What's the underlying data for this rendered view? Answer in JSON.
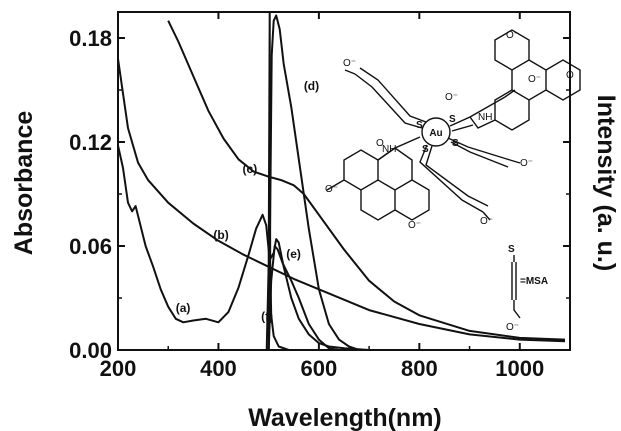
{
  "chart_data": {
    "type": "line",
    "xlabel": "Wavelength(nm)",
    "ylabel_left": "Absorbance",
    "ylabel_right": "Intensity (a. u.)",
    "xlim": [
      200,
      1100
    ],
    "ylim": [
      0,
      0.195
    ],
    "x_ticks": [
      200,
      400,
      600,
      800,
      1000
    ],
    "y_ticks": [
      0.0,
      0.06,
      0.12,
      0.18
    ],
    "x_tick_labels": [
      "200",
      "400",
      "600",
      "800",
      "1000"
    ],
    "y_tick_labels": [
      "0.00",
      "0.06",
      "0.12",
      "0.18"
    ],
    "grid": false,
    "series": [
      {
        "name": "(a)",
        "points": [
          [
            200,
            0.118
          ],
          [
            210,
            0.105
          ],
          [
            220,
            0.085
          ],
          [
            228,
            0.08
          ],
          [
            235,
            0.083
          ],
          [
            242,
            0.075
          ],
          [
            255,
            0.06
          ],
          [
            270,
            0.048
          ],
          [
            285,
            0.035
          ],
          [
            300,
            0.025
          ],
          [
            315,
            0.018
          ],
          [
            330,
            0.016
          ],
          [
            350,
            0.017
          ],
          [
            375,
            0.018
          ],
          [
            400,
            0.016
          ],
          [
            420,
            0.022
          ],
          [
            440,
            0.036
          ],
          [
            460,
            0.055
          ],
          [
            475,
            0.07
          ],
          [
            488,
            0.078
          ],
          [
            495,
            0.072
          ],
          [
            502,
            0.052
          ],
          [
            510,
            0.056
          ],
          [
            515,
            0.064
          ],
          [
            520,
            0.062
          ],
          [
            530,
            0.048
          ],
          [
            545,
            0.03
          ],
          [
            560,
            0.018
          ],
          [
            580,
            0.009
          ],
          [
            600,
            0.004
          ],
          [
            620,
            0.002
          ],
          [
            650,
            0.001
          ],
          [
            700,
            0.0
          ]
        ]
      },
      {
        "name": "(b)",
        "points": [
          [
            200,
            0.168
          ],
          [
            220,
            0.128
          ],
          [
            240,
            0.108
          ],
          [
            260,
            0.098
          ],
          [
            300,
            0.085
          ],
          [
            350,
            0.073
          ],
          [
            400,
            0.063
          ],
          [
            450,
            0.055
          ],
          [
            500,
            0.048
          ],
          [
            550,
            0.041
          ],
          [
            600,
            0.035
          ],
          [
            650,
            0.029
          ],
          [
            700,
            0.023
          ],
          [
            800,
            0.015
          ],
          [
            900,
            0.009
          ],
          [
            1000,
            0.006
          ],
          [
            1090,
            0.005
          ]
        ]
      },
      {
        "name": "(c)",
        "points": [
          [
            300,
            0.19
          ],
          [
            320,
            0.178
          ],
          [
            350,
            0.158
          ],
          [
            380,
            0.138
          ],
          [
            410,
            0.122
          ],
          [
            440,
            0.11
          ],
          [
            470,
            0.103
          ],
          [
            500,
            0.1
          ],
          [
            525,
            0.098
          ],
          [
            550,
            0.095
          ],
          [
            570,
            0.09
          ],
          [
            600,
            0.078
          ],
          [
            650,
            0.058
          ],
          [
            700,
            0.04
          ],
          [
            750,
            0.028
          ],
          [
            800,
            0.02
          ],
          [
            900,
            0.011
          ],
          [
            1000,
            0.007
          ],
          [
            1090,
            0.006
          ]
        ]
      },
      {
        "name": "(d)",
        "points": [
          [
            500,
            0.0
          ],
          [
            503,
            0.08
          ],
          [
            506,
            0.17
          ],
          [
            510,
            0.19
          ],
          [
            515,
            0.193
          ],
          [
            522,
            0.185
          ],
          [
            530,
            0.165
          ],
          [
            545,
            0.14
          ],
          [
            560,
            0.11
          ],
          [
            580,
            0.07
          ],
          [
            600,
            0.035
          ],
          [
            620,
            0.015
          ],
          [
            640,
            0.006
          ],
          [
            660,
            0.002
          ],
          [
            680,
            0.0
          ]
        ]
      },
      {
        "name": "(e)",
        "points": [
          [
            500,
            0.0
          ],
          [
            505,
            0.04
          ],
          [
            512,
            0.06
          ],
          [
            518,
            0.058
          ],
          [
            528,
            0.05
          ],
          [
            545,
            0.04
          ],
          [
            560,
            0.03
          ],
          [
            580,
            0.015
          ],
          [
            600,
            0.006
          ],
          [
            620,
            0.001
          ],
          [
            640,
            0.0
          ]
        ]
      },
      {
        "name": "(f)",
        "points": [
          [
            496,
            0.0
          ],
          [
            498,
            0.025
          ],
          [
            500,
            0.05
          ],
          [
            502,
            0.2
          ],
          [
            503,
            0.05
          ],
          [
            505,
            0.02
          ],
          [
            510,
            0.008
          ],
          [
            520,
            0.002
          ],
          [
            540,
            0.0
          ]
        ]
      }
    ],
    "labels": [
      {
        "text": "(a)",
        "x": 315,
        "y": 0.022
      },
      {
        "text": "(b)",
        "x": 390,
        "y": 0.064
      },
      {
        "text": "(c)",
        "x": 448,
        "y": 0.102
      },
      {
        "text": "(d)",
        "x": 570,
        "y": 0.15
      },
      {
        "text": "(e)",
        "x": 535,
        "y": 0.053
      },
      {
        "text": "(f)",
        "x": 485,
        "y": 0.017
      }
    ]
  },
  "molecule": {
    "center": "Au",
    "atoms": [
      "S",
      "S",
      "S",
      "S"
    ],
    "amide_label": "NH",
    "ion_label": "O⁻",
    "carbonyl": "O",
    "legend_label": "=MSA"
  }
}
